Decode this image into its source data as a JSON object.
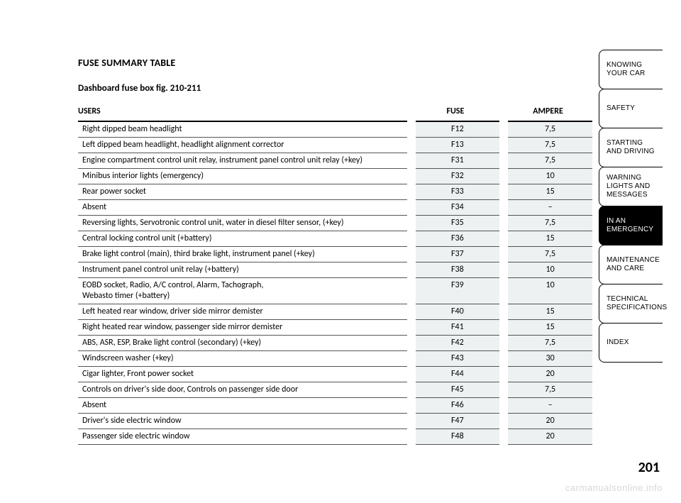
{
  "heading": "FUSE SUMMARY TABLE",
  "subheading": "Dashboard fuse box fig. 210-211",
  "columns": {
    "users": "USERS",
    "fuse": "FUSE",
    "amp": "AMPERE"
  },
  "rows": [
    {
      "users": "Right dipped beam headlight",
      "fuse": "F12",
      "amp": "7,5"
    },
    {
      "users": "Left dipped beam headlight, headlight alignment corrector",
      "fuse": "F13",
      "amp": "7,5"
    },
    {
      "users": "Engine compartment control unit relay, instrument panel control unit relay (+key)",
      "fuse": "F31",
      "amp": "7,5"
    },
    {
      "users": "Minibus interior lights (emergency)",
      "fuse": "F32",
      "amp": "10"
    },
    {
      "users": "Rear power socket",
      "fuse": "F33",
      "amp": "15"
    },
    {
      "users": "Absent",
      "fuse": "F34",
      "amp": "–"
    },
    {
      "users": "Reversing lights, Servotronic control unit, water in diesel filter sensor, (+key)",
      "fuse": "F35",
      "amp": "7,5"
    },
    {
      "users": "Central locking control unit (+battery)",
      "fuse": "F36",
      "amp": "15"
    },
    {
      "users": "Brake light control (main), third brake light, instrument panel (+key)",
      "fuse": "F37",
      "amp": "7,5"
    },
    {
      "users": "Instrument panel control unit relay (+battery)",
      "fuse": "F38",
      "amp": "10"
    },
    {
      "users": "EOBD socket, Radio, A/C control, Alarm, Tachograph,\nWebasto timer (+battery)",
      "fuse": "F39",
      "amp": "10"
    },
    {
      "users": "Left heated rear window, driver side mirror demister",
      "fuse": "F40",
      "amp": "15"
    },
    {
      "users": "Right heated rear window, passenger side mirror demister",
      "fuse": "F41",
      "amp": "15"
    },
    {
      "users": "ABS, ASR, ESP, Brake light control (secondary) (+key)",
      "fuse": "F42",
      "amp": "7,5"
    },
    {
      "users": "Windscreen washer (+key)",
      "fuse": "F43",
      "amp": "30"
    },
    {
      "users": "Cigar lighter, Front power socket",
      "fuse": "F44",
      "amp": "20"
    },
    {
      "users": "Controls on driver's side door, Controls on passenger side door",
      "fuse": "F45",
      "amp": "7,5"
    },
    {
      "users": "Absent",
      "fuse": "F46",
      "amp": "–"
    },
    {
      "users": "Driver's side electric window",
      "fuse": "F47",
      "amp": "20"
    },
    {
      "users": "Passenger side electric window",
      "fuse": "F48",
      "amp": "20"
    }
  ],
  "tabs": [
    {
      "label": "KNOWING YOUR CAR",
      "active": false
    },
    {
      "label": "SAFETY",
      "active": false
    },
    {
      "label": "STARTING AND DRIVING",
      "active": false
    },
    {
      "label": "WARNING LIGHTS AND MESSAGES",
      "active": false
    },
    {
      "label": "IN AN EMERGENCY",
      "active": true
    },
    {
      "label": "MAINTENANCE AND CARE",
      "active": false
    },
    {
      "label": "TECHNICAL SPECIFICATIONS",
      "active": false
    },
    {
      "label": "INDEX",
      "active": false
    }
  ],
  "page_number": "201",
  "watermark": "carmanualsonline.info",
  "style": {
    "shaded_col_bg": "#edf1f2",
    "border_color": "#555555",
    "header_border": "#000000",
    "font_size_body": 12,
    "font_size_heading": 14,
    "font_size_sub": 13,
    "tab_font_size": 10
  }
}
